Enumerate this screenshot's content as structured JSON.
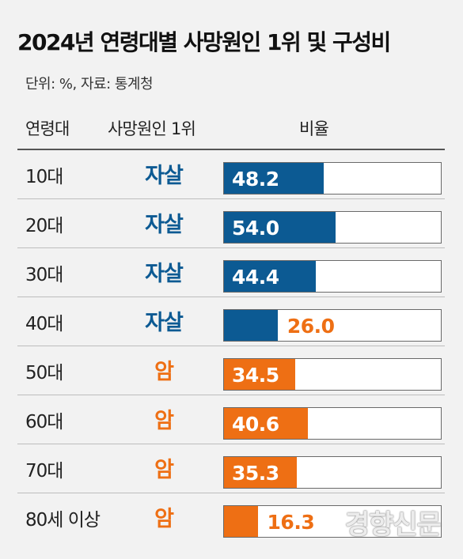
{
  "header": {
    "title": "2024년 연령대별 사망원인 1위 및 구성비",
    "subtitle": "단위: %, 자료: 통계청"
  },
  "columns": {
    "age": "연령대",
    "cause": "사망원인 1위",
    "ratio": "비율"
  },
  "colors": {
    "suicide": "#0c5a93",
    "cancer": "#ee6f14",
    "bar_text_light": "#ffffff",
    "bar_text_dark": "#ee6f14"
  },
  "chart_data": {
    "type": "bar",
    "orientation": "horizontal",
    "title": "2024년 연령대별 사망원인 1위 및 구성비",
    "subtitle": "단위: %, 자료: 통계청",
    "xlim": [
      0,
      100
    ],
    "categories": [
      "10대",
      "20대",
      "30대",
      "40대",
      "50대",
      "60대",
      "70대",
      "80세 이상"
    ],
    "causes": [
      "자살",
      "자살",
      "자살",
      "자살",
      "암",
      "암",
      "암",
      "암"
    ],
    "values": [
      48.2,
      54.0,
      44.4,
      26.0,
      34.5,
      40.6,
      35.3,
      16.3
    ],
    "value_labels": [
      "48.2",
      "54.0",
      "44.4",
      "26.0",
      "34.5",
      "40.6",
      "35.3",
      "16.3"
    ]
  },
  "watermark": "경향신문"
}
